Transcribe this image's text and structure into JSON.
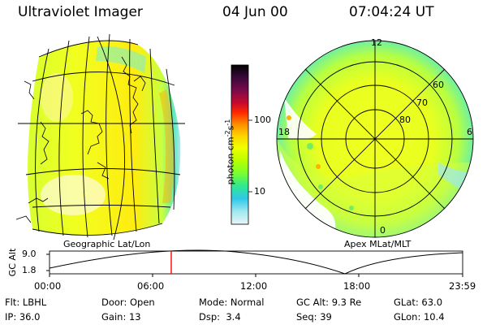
{
  "header": {
    "title": "Ultraviolet Imager",
    "date": "04 Jun 00",
    "time": "07:04:24 UT"
  },
  "left_panel": {
    "label": "Geographic Lat/Lon"
  },
  "right_panel": {
    "label": "Apex MLat/MLT",
    "mlt_labels": [
      "12",
      "18",
      "6",
      "0"
    ],
    "lat_labels": [
      "60",
      "70",
      "80"
    ]
  },
  "colorbar": {
    "unit_label": "photon cm",
    "unit_exp": "-2",
    "unit_s": "s",
    "unit_exp2": "-1",
    "ticks": [
      "100",
      "10"
    ],
    "colors": [
      "#000000",
      "#3a0a3a",
      "#7a0a4a",
      "#c80a2a",
      "#ff2a00",
      "#ff8a00",
      "#ffd000",
      "#f0ff00",
      "#b8ff00",
      "#78ff30",
      "#30e890",
      "#30c8e8",
      "#a0e8f0",
      "#e8f4f8"
    ]
  },
  "timeline": {
    "axis_label": "GC Alt",
    "y_ticks": [
      "9.0",
      "1.8"
    ],
    "x_ticks": [
      "00:00",
      "06:00",
      "12:00",
      "18:00",
      "23:59"
    ],
    "marker_time": "07:04",
    "marker_color": "#ff0000"
  },
  "metadata": {
    "row1": [
      {
        "key": "Flt:",
        "value": "LBHL"
      },
      {
        "key": "Door:",
        "value": "Open"
      },
      {
        "key": "Mode:",
        "value": "Normal"
      },
      {
        "key": "GC Alt:",
        "value": "9.3 Re"
      },
      {
        "key": "GLat:",
        "value": "63.0"
      }
    ],
    "row2": [
      {
        "key": "IP:",
        "value": "36.0"
      },
      {
        "key": "Gain:",
        "value": "13"
      },
      {
        "key": "Dsp:",
        "value": "3.4"
      },
      {
        "key": "Seq:",
        "value": "39"
      },
      {
        "key": "GLon:",
        "value": "10.4"
      }
    ]
  }
}
